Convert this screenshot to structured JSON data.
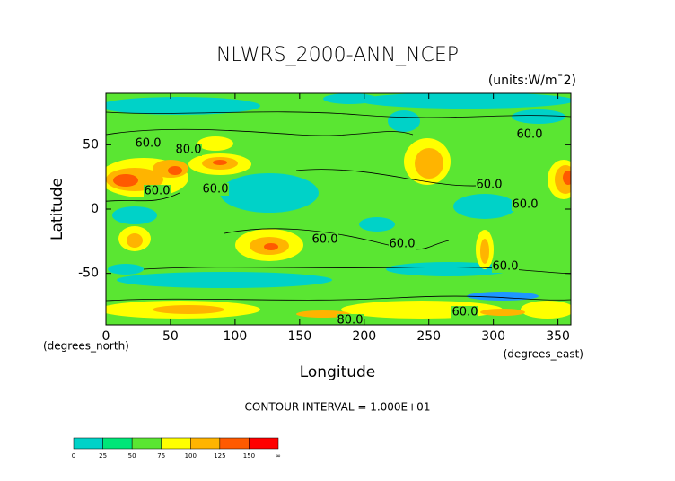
{
  "chart_data": {
    "type": "contour",
    "title": "NLWRS_2000-ANN_NCEP",
    "subtitle": "(units:W/m¯2)",
    "x_label": "Longitude",
    "y_label": "Latitude",
    "x_unit": "(degrees_east)",
    "y_unit": "(degrees_north)",
    "note": "CONTOUR INTERVAL = 1.000E+01",
    "xlim": [
      0,
      360
    ],
    "xticks": [
      0,
      50,
      100,
      150,
      200,
      250,
      300,
      350
    ],
    "ylim": [
      -90,
      90
    ],
    "yticks": [
      -50,
      0,
      50
    ],
    "contour_labels": [
      "80.0",
      "60.0",
      "60.0",
      "60.0",
      "60.0",
      "60.0",
      "60.0",
      "60.0",
      "60.0",
      "60.0",
      "80.0",
      "60.0"
    ],
    "colorbar": {
      "ticks": [
        0,
        25,
        50,
        75,
        100,
        125,
        150
      ],
      "end_label": "∞",
      "colors": [
        "#1e96ff",
        "#00d2c8",
        "#00e678",
        "#5ae632",
        "#ffff00",
        "#ffb400",
        "#ff5a00",
        "#ff0000"
      ]
    }
  }
}
